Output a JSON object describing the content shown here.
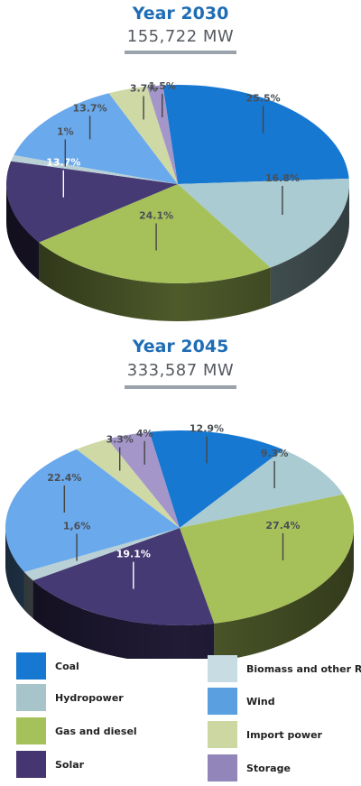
{
  "chart_data": [
    {
      "type": "pie",
      "title": "Year 2030",
      "subtitle": "155,722 MW",
      "slices": [
        {
          "name": "Coal",
          "value": 25.5,
          "label": "25.5%"
        },
        {
          "name": "Biomass and other RE",
          "value": 16.8,
          "label": "16.8%"
        },
        {
          "name": "Gas and diesel",
          "value": 24.1,
          "label": "24.1%"
        },
        {
          "name": "Solar",
          "value": 13.7,
          "label": "13.7%"
        },
        {
          "name": "Hydropower",
          "value": 1.0,
          "label": "1%"
        },
        {
          "name": "Wind",
          "value": 13.7,
          "label": "13.7%"
        },
        {
          "name": "Import power",
          "value": 3.7,
          "label": "3.7%"
        },
        {
          "name": "Storage",
          "value": 1.5,
          "label": "1.5%"
        }
      ]
    },
    {
      "type": "pie",
      "title": "Year 2045",
      "subtitle": "333,587 MW",
      "slices": [
        {
          "name": "Coal",
          "value": 12.9,
          "label": "12.9%"
        },
        {
          "name": "Biomass and other RE",
          "value": 9.3,
          "label": "9.3%"
        },
        {
          "name": "Gas and diesel",
          "value": 27.4,
          "label": "27.4%"
        },
        {
          "name": "Solar",
          "value": 19.1,
          "label": "19.1%"
        },
        {
          "name": "Hydropower",
          "value": 1.6,
          "label": "1,6%"
        },
        {
          "name": "Wind",
          "value": 22.4,
          "label": "22.4%"
        },
        {
          "name": "Import power",
          "value": 3.3,
          "label": "3.3%"
        },
        {
          "name": "Storage",
          "value": 4.0,
          "label": "4%"
        }
      ]
    }
  ],
  "legend": [
    {
      "name": "Coal",
      "color": "#1778d2"
    },
    {
      "name": "Biomass and other RE",
      "color": "#c7dde3"
    },
    {
      "name": "Hydropower",
      "color": "#a6c4c9"
    },
    {
      "name": "Wind",
      "color": "#5a9fe0"
    },
    {
      "name": "Gas and diesel",
      "color": "#a4c15a"
    },
    {
      "name": "Import power",
      "color": "#ccd7a1"
    },
    {
      "name": "Solar",
      "color": "#453671"
    },
    {
      "name": "Storage",
      "color": "#9185b9"
    }
  ],
  "colors": {
    "Coal": "#1778d2",
    "Biomass and other RE": "#a9cbd1",
    "Gas and diesel": "#a7c15a",
    "Solar": "#463a74",
    "Hydropower": "#b9d0d6",
    "Wind": "#6aa9ec",
    "Import power": "#cfd9a6",
    "Storage": "#a596c9",
    "title": "#1f6db5"
  }
}
